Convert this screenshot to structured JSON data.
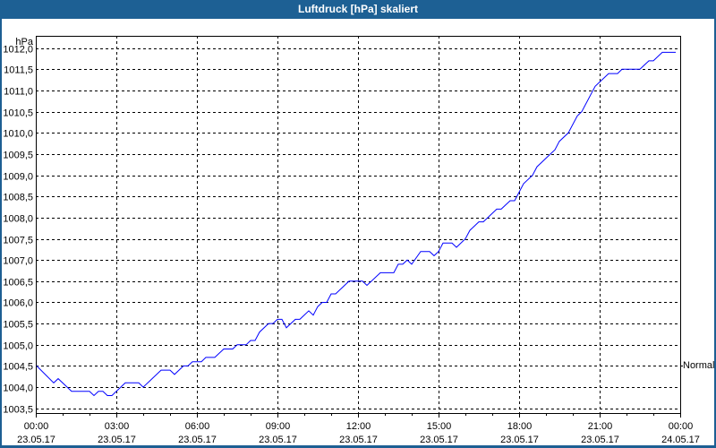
{
  "window": {
    "title": "Luftdruck [hPa] skaliert"
  },
  "colors": {
    "title_bar": "#1d6094",
    "line": "#0000ff",
    "grid": "#000000"
  },
  "chart_data": {
    "type": "line",
    "title": "Luftdruck [hPa] skaliert",
    "ylabel": "hPa",
    "ylim": [
      1003.5,
      1012.0
    ],
    "yticks": [
      "1003,5",
      "1004,0",
      "1004,5",
      "1005,0",
      "1005,5",
      "1006,0",
      "1006,5",
      "1007,0",
      "1007,5",
      "1008,0",
      "1008,5",
      "1009,0",
      "1009,5",
      "1010,0",
      "1010,5",
      "1011,0",
      "1011,5",
      "1012,0"
    ],
    "xlim": [
      "23.05.17 00:00",
      "24.05.17 00:00"
    ],
    "xticks": [
      {
        "time": "00:00",
        "date": "23.05.17"
      },
      {
        "time": "03:00",
        "date": "23.05.17"
      },
      {
        "time": "06:00",
        "date": "23.05.17"
      },
      {
        "time": "09:00",
        "date": "23.05.17"
      },
      {
        "time": "12:00",
        "date": "23.05.17"
      },
      {
        "time": "15:00",
        "date": "23.05.17"
      },
      {
        "time": "18:00",
        "date": "23.05.17"
      },
      {
        "time": "21:00",
        "date": "23.05.17"
      },
      {
        "time": "00:00",
        "date": "24.05.17"
      }
    ],
    "grid": true,
    "reference_line": {
      "label": "Normal",
      "value": 1004.5
    },
    "series": [
      {
        "date": "23.05.17",
        "x": [
          "00:02",
          "00:40",
          "00:50",
          "01:20",
          "02:00",
          "02:10",
          "02:20",
          "02:30",
          "02:40",
          "02:50",
          "03:20",
          "03:50",
          "04:00",
          "04:40",
          "05:00",
          "05:10",
          "05:30",
          "05:40",
          "05:50",
          "06:10",
          "06:20",
          "06:40",
          "07:00",
          "07:20",
          "07:30",
          "07:50",
          "08:00",
          "08:10",
          "08:20",
          "08:40",
          "08:50",
          "09:00",
          "09:10",
          "09:20",
          "09:40",
          "09:50",
          "10:10",
          "10:20",
          "10:30",
          "10:40",
          "10:50",
          "11:00",
          "11:10",
          "11:40",
          "12:10",
          "12:20",
          "12:50",
          "13:20",
          "13:30",
          "13:40",
          "13:50",
          "14:00",
          "14:20",
          "14:40",
          "14:50",
          "15:00",
          "15:10",
          "15:30",
          "15:40",
          "16:00",
          "16:10",
          "16:30",
          "16:40",
          "17:10",
          "17:20",
          "17:40",
          "17:50",
          "18:10",
          "18:30",
          "18:40",
          "18:50",
          "19:10",
          "19:20",
          "19:30",
          "19:50",
          "20:10",
          "20:20",
          "20:50",
          "21:20",
          "21:40",
          "21:50",
          "22:30",
          "22:50",
          "23:00",
          "23:20",
          "23:50"
        ],
        "y": [
          1004.5,
          1004.1,
          1004.2,
          1003.9,
          1003.9,
          1003.8,
          1003.9,
          1003.9,
          1003.8,
          1003.8,
          1004.1,
          1004.1,
          1004.0,
          1004.4,
          1004.4,
          1004.3,
          1004.5,
          1004.5,
          1004.6,
          1004.6,
          1004.7,
          1004.7,
          1004.9,
          1004.9,
          1005.0,
          1005.0,
          1005.1,
          1005.1,
          1005.3,
          1005.5,
          1005.5,
          1005.6,
          1005.6,
          1005.4,
          1005.6,
          1005.6,
          1005.8,
          1005.7,
          1005.9,
          1006.0,
          1006.0,
          1006.2,
          1006.2,
          1006.5,
          1006.5,
          1006.4,
          1006.7,
          1006.7,
          1006.9,
          1006.9,
          1007.0,
          1006.9,
          1007.2,
          1007.2,
          1007.1,
          1007.2,
          1007.4,
          1007.4,
          1007.3,
          1007.5,
          1007.7,
          1007.9,
          1007.9,
          1008.2,
          1008.2,
          1008.4,
          1008.4,
          1008.8,
          1009.0,
          1009.2,
          1009.3,
          1009.5,
          1009.6,
          1009.8,
          1010.0,
          1010.4,
          1010.5,
          1011.1,
          1011.4,
          1011.4,
          1011.5,
          1011.5,
          1011.7,
          1011.7,
          1011.9,
          1011.9
        ]
      }
    ]
  }
}
